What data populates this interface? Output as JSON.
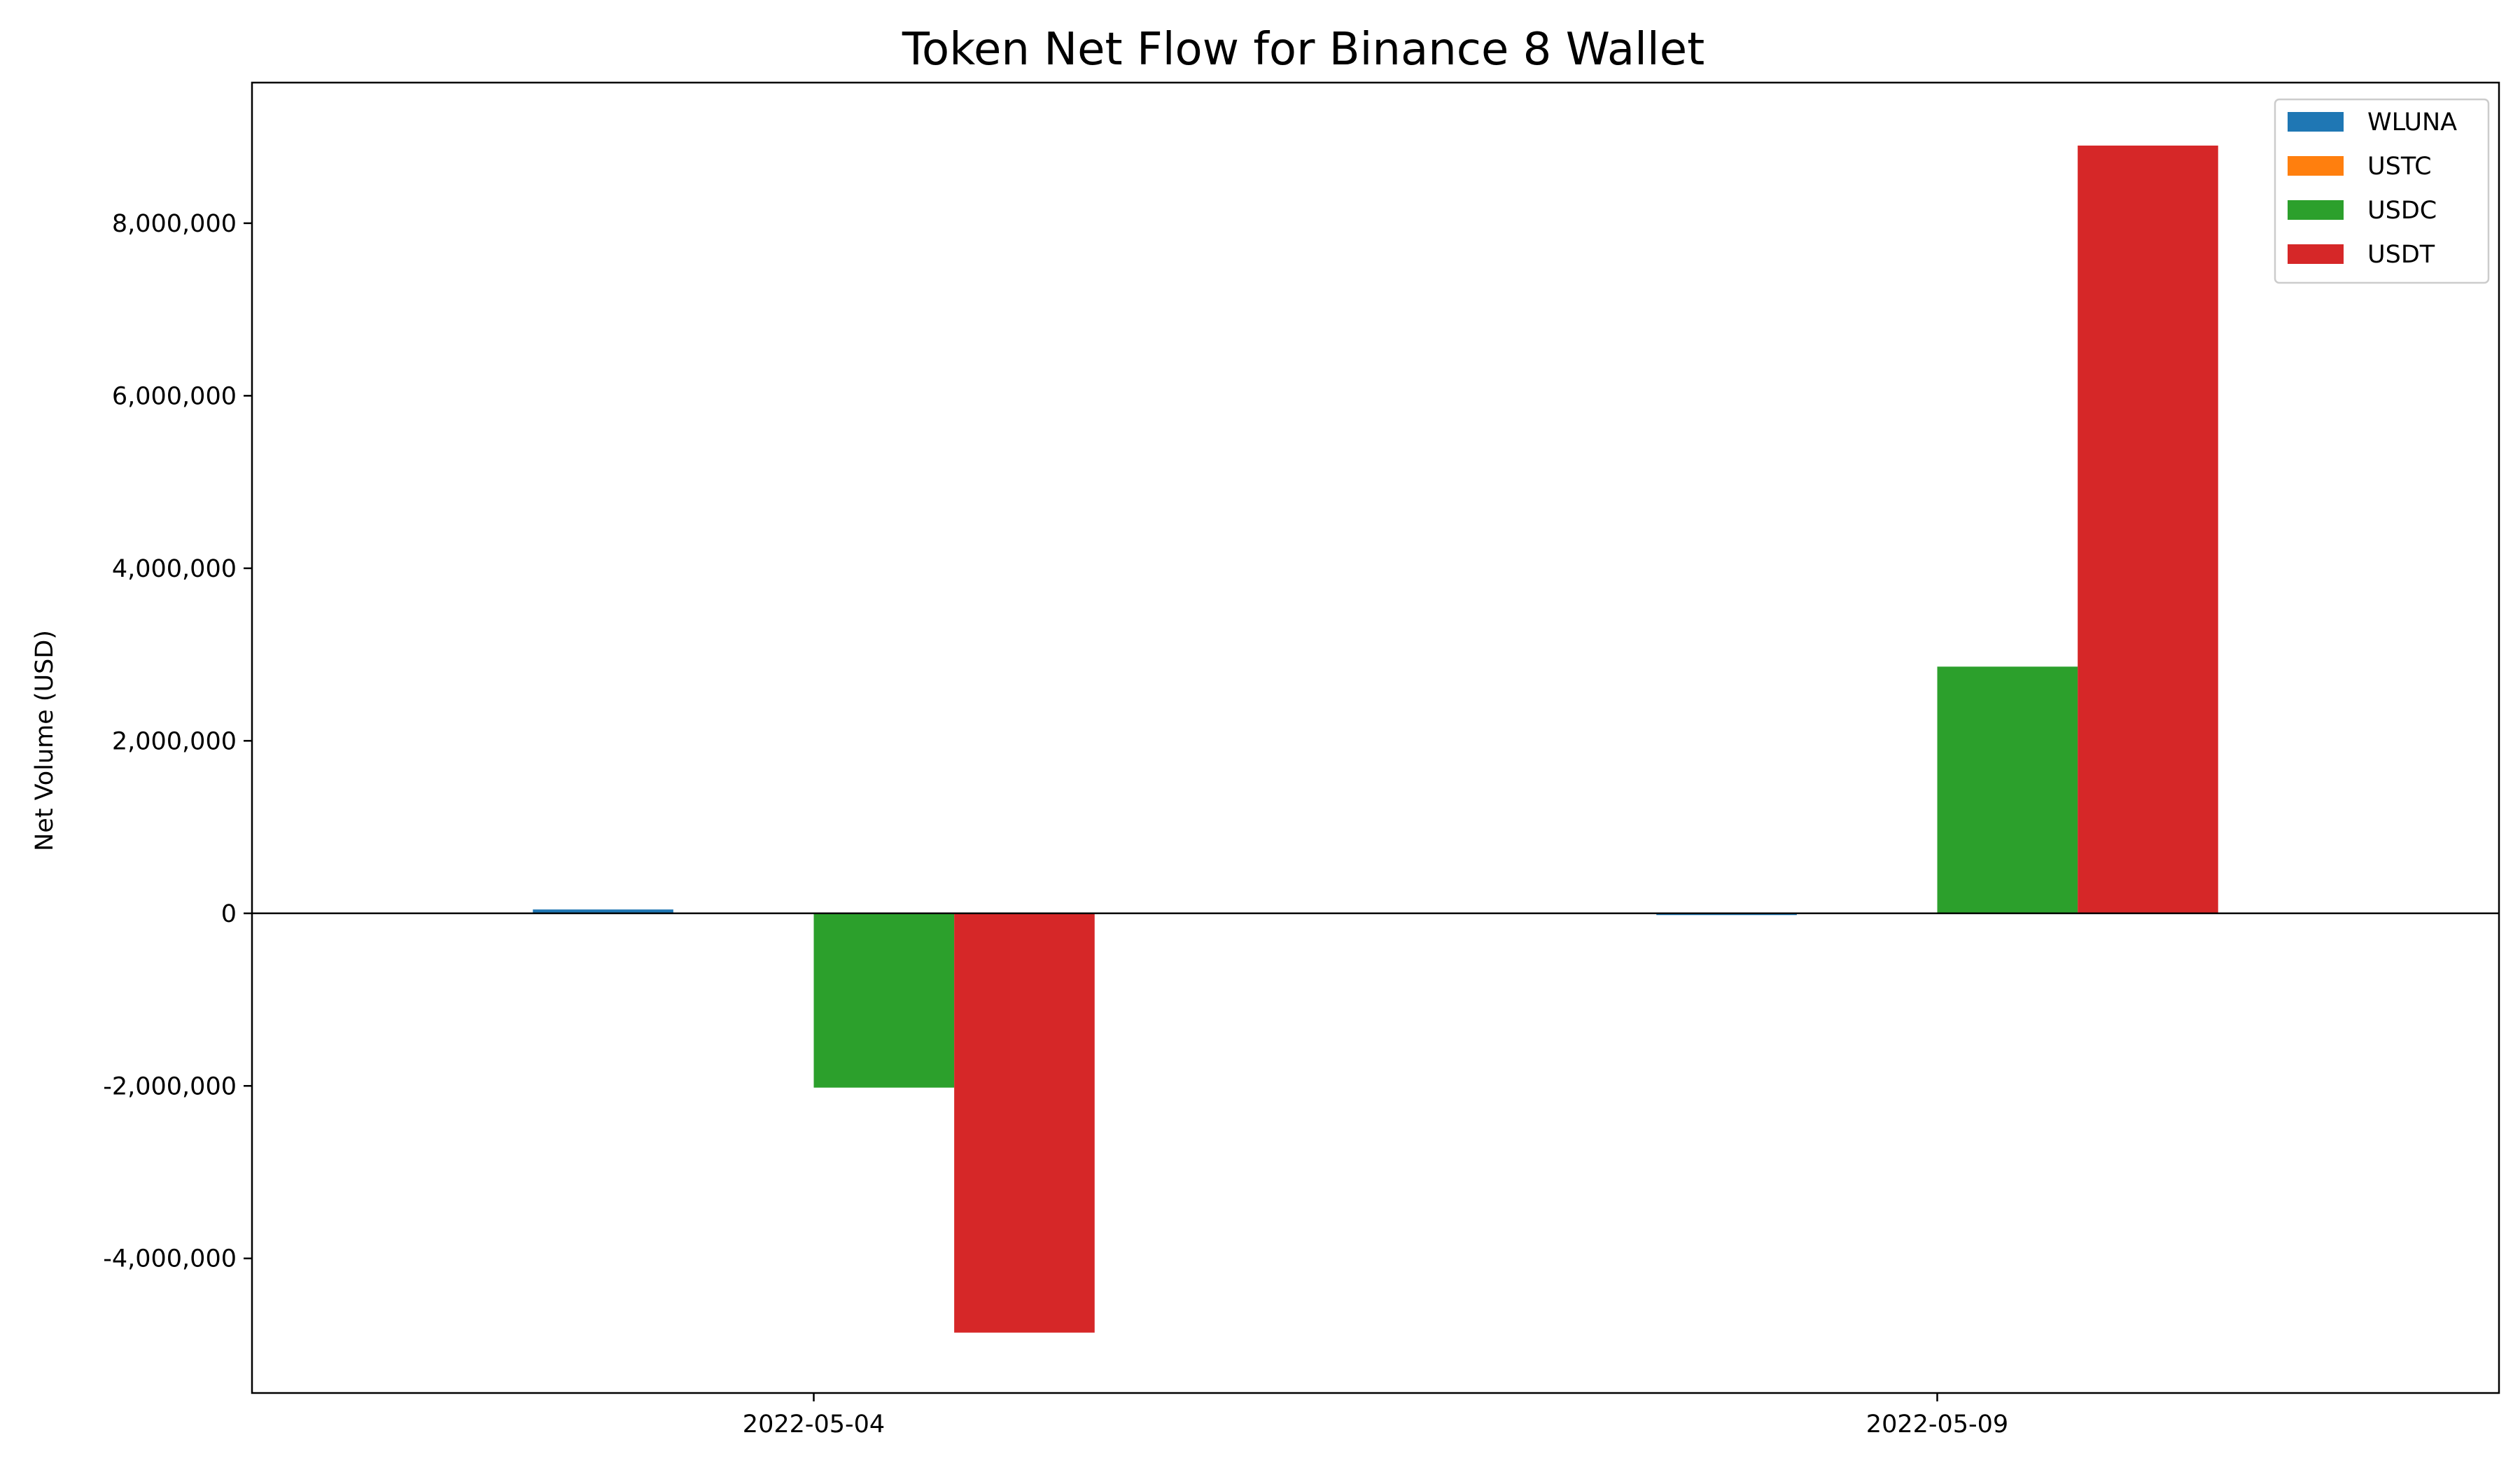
{
  "chart_data": {
    "type": "bar",
    "title": "Token Net Flow for Binance 8 Wallet",
    "xlabel": "",
    "ylabel": "Net Volume (USD)",
    "categories": [
      "2022-05-04",
      "2022-05-09"
    ],
    "series": [
      {
        "name": "WLUNA",
        "color": "#1f77b4",
        "values": [
          45000,
          -20000
        ]
      },
      {
        "name": "USTC",
        "color": "#ff7f0e",
        "values": [
          0,
          0
        ]
      },
      {
        "name": "USDC",
        "color": "#2ca02c",
        "values": [
          -2020000,
          2860000
        ]
      },
      {
        "name": "USDT",
        "color": "#d62728",
        "values": [
          -4860000,
          8900000
        ]
      }
    ],
    "ylim": [
      -5560000,
      9630000
    ],
    "yticks": [
      -4000000,
      -2000000,
      0,
      2000000,
      4000000,
      6000000,
      8000000
    ],
    "ytick_labels": [
      "-4,000,000",
      "-2,000,000",
      "0",
      "2,000,000",
      "4,000,000",
      "6,000,000",
      "8,000,000"
    ],
    "grid": false,
    "legend_position": "top-right",
    "zero_line": true
  }
}
